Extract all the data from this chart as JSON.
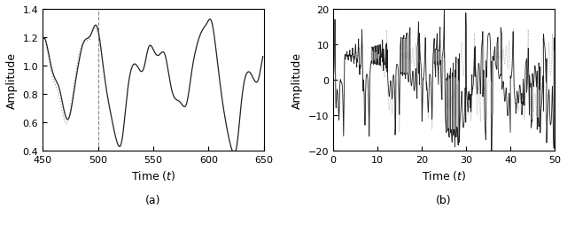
{
  "fig_width": 6.4,
  "fig_height": 2.55,
  "dpi": 100,
  "subplot_a": {
    "xlim": [
      450,
      650
    ],
    "ylim": [
      0.4,
      1.4
    ],
    "xlabel": "Time ($t$)",
    "ylabel": "Amplitude",
    "vline_x": 500,
    "xticks": [
      450,
      500,
      550,
      600,
      650
    ],
    "yticks": [
      0.4,
      0.6,
      0.8,
      1.0,
      1.2,
      1.4
    ],
    "label": "(a)"
  },
  "subplot_b": {
    "xlim": [
      0,
      50
    ],
    "ylim": [
      -20,
      20
    ],
    "xlabel": "Time ($t$)",
    "ylabel": "Amplitude",
    "xticks": [
      0,
      10,
      20,
      30,
      40,
      50
    ],
    "yticks": [
      -20,
      -10,
      0,
      10,
      20
    ],
    "label": "(b)"
  },
  "line_color_solid": "#222222",
  "line_color_dotted": "#aaaaaa",
  "background_color": "#ffffff"
}
